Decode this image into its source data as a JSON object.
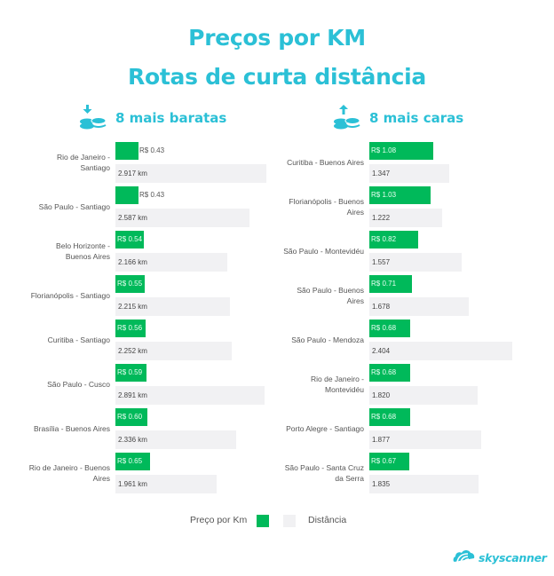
{
  "header": {
    "title_line1": "Preços por KM",
    "title_line2": "Rotas de curta distância"
  },
  "sections": {
    "cheapest": {
      "label": "8 mais baratas",
      "icon": "coins-arrow-down-icon"
    },
    "expensive": {
      "label": "8 mais caras",
      "icon": "coins-arrow-up-icon"
    }
  },
  "legend": {
    "price_label": "Preço por Km",
    "distance_label": "Distância",
    "price_color": "#00b95a",
    "distance_color": "#f1f1f3"
  },
  "brand": {
    "name": "skyscanner",
    "color": "#2bc0d6"
  },
  "colors": {
    "accent": "#2bc0d6",
    "price_bar": "#00b95a",
    "distance_bar": "#f1f1f3"
  },
  "chart_data": [
    {
      "type": "bar",
      "title": "8 mais baratas",
      "orientation": "horizontal",
      "categories": [
        "Rio de Janeiro - Santiago",
        "São Paulo - Santiago",
        "Belo Horizonte - Buenos Aires",
        "Florianópolis - Santiago",
        "Curitiba - Santiago",
        "São Paulo - Cusco",
        "Brasília - Buenos Aires",
        "Rio de Janeiro - Buenos Aires"
      ],
      "series": [
        {
          "name": "Preço por Km",
          "values": [
            0.43,
            0.43,
            0.54,
            0.55,
            0.56,
            0.59,
            0.6,
            0.65
          ],
          "labels": [
            "R$ 0.43",
            "R$ 0.43",
            "R$ 0.54",
            "R$ 0.55",
            "R$ 0.56",
            "R$ 0.59",
            "R$ 0.60",
            "R$ 0.65"
          ]
        },
        {
          "name": "Distância",
          "values": [
            2917,
            2587,
            2166,
            2215,
            2252,
            2891,
            2336,
            1961
          ],
          "labels": [
            "2.917 km",
            "2.587 km",
            "2.166 km",
            "2.215 km",
            "2.252 km",
            "2.891 km",
            "2.336 km",
            "1.961 km"
          ]
        }
      ],
      "xlabel": "",
      "ylabel": "",
      "grid": false,
      "legend_position": "bottom"
    },
    {
      "type": "bar",
      "title": "8 mais caras",
      "orientation": "horizontal",
      "categories": [
        "Curitiba - Buenos Aires",
        "Florianópolis - Buenos Aires",
        "São Paulo - Montevidéu",
        "São Paulo - Buenos Aires",
        "São Paulo - Mendoza",
        "Rio de Janeiro - Montevidéu",
        "Porto Alegre - Santiago",
        "São Paulo - Santa Cruz da Serra"
      ],
      "series": [
        {
          "name": "Preço por Km",
          "values": [
            1.08,
            1.03,
            0.82,
            0.71,
            0.68,
            0.68,
            0.68,
            0.67
          ],
          "labels": [
            "R$ 1.08",
            "R$ 1.03",
            "R$ 0.82",
            "R$ 0.71",
            "R$ 0.68",
            "R$ 0.68",
            "R$ 0.68",
            "R$ 0.67"
          ]
        },
        {
          "name": "Distância",
          "values": [
            1347,
            1222,
            1557,
            1678,
            2404,
            1820,
            1877,
            1835
          ],
          "labels": [
            "1.347",
            "1.222",
            "1.557",
            "1.678",
            "2.404",
            "1.820",
            "1.877",
            "1.835"
          ]
        }
      ],
      "xlabel": "",
      "ylabel": "",
      "grid": false,
      "legend_position": "bottom"
    }
  ],
  "left_rows": [
    {
      "route_l1": "Rio de Janeiro -",
      "route_l2": "Santiago",
      "price": "R$ 0.43",
      "distance": "2.917 km"
    },
    {
      "route_l1": "São Paulo - Santiago",
      "route_l2": "",
      "price": "R$ 0.43",
      "distance": "2.587 km"
    },
    {
      "route_l1": "Belo Horizonte -",
      "route_l2": "Buenos Aires",
      "price": "R$ 0.54",
      "distance": "2.166 km"
    },
    {
      "route_l1": "Florianópolis - Santiago",
      "route_l2": "",
      "price": "R$ 0.55",
      "distance": "2.215 km"
    },
    {
      "route_l1": "Curitiba - Santiago",
      "route_l2": "",
      "price": "R$ 0.56",
      "distance": "2.252 km"
    },
    {
      "route_l1": "São Paulo - Cusco",
      "route_l2": "",
      "price": "R$ 0.59",
      "distance": "2.891 km"
    },
    {
      "route_l1": "Brasília - Buenos Aires",
      "route_l2": "",
      "price": "R$ 0.60",
      "distance": "2.336 km"
    },
    {
      "route_l1": "Rio de Janeiro - Buenos",
      "route_l2": "Aires",
      "price": "R$ 0.65",
      "distance": "1.961 km"
    }
  ],
  "right_rows": [
    {
      "route_l1": "Curitiba - Buenos Aires",
      "route_l2": "",
      "price": "R$ 1.08",
      "distance": "1.347"
    },
    {
      "route_l1": "Florianópolis - Buenos",
      "route_l2": "Aires",
      "price": "R$ 1.03",
      "distance": "1.222"
    },
    {
      "route_l1": "São Paulo - Montevidéu",
      "route_l2": "",
      "price": "R$ 0.82",
      "distance": "1.557"
    },
    {
      "route_l1": "São Paulo - Buenos",
      "route_l2": "Aires",
      "price": "R$ 0.71",
      "distance": "1.678"
    },
    {
      "route_l1": "São Paulo - Mendoza",
      "route_l2": "",
      "price": "R$ 0.68",
      "distance": "2.404"
    },
    {
      "route_l1": "Rio de Janeiro -",
      "route_l2": "Montevidéu",
      "price": "R$ 0.68",
      "distance": "1.820"
    },
    {
      "route_l1": "Porto Alegre - Santiago",
      "route_l2": "",
      "price": "R$ 0.68",
      "distance": "1.877"
    },
    {
      "route_l1": "São Paulo - Santa Cruz",
      "route_l2": "da Serra",
      "price": "R$ 0.67",
      "distance": "1.835"
    }
  ]
}
